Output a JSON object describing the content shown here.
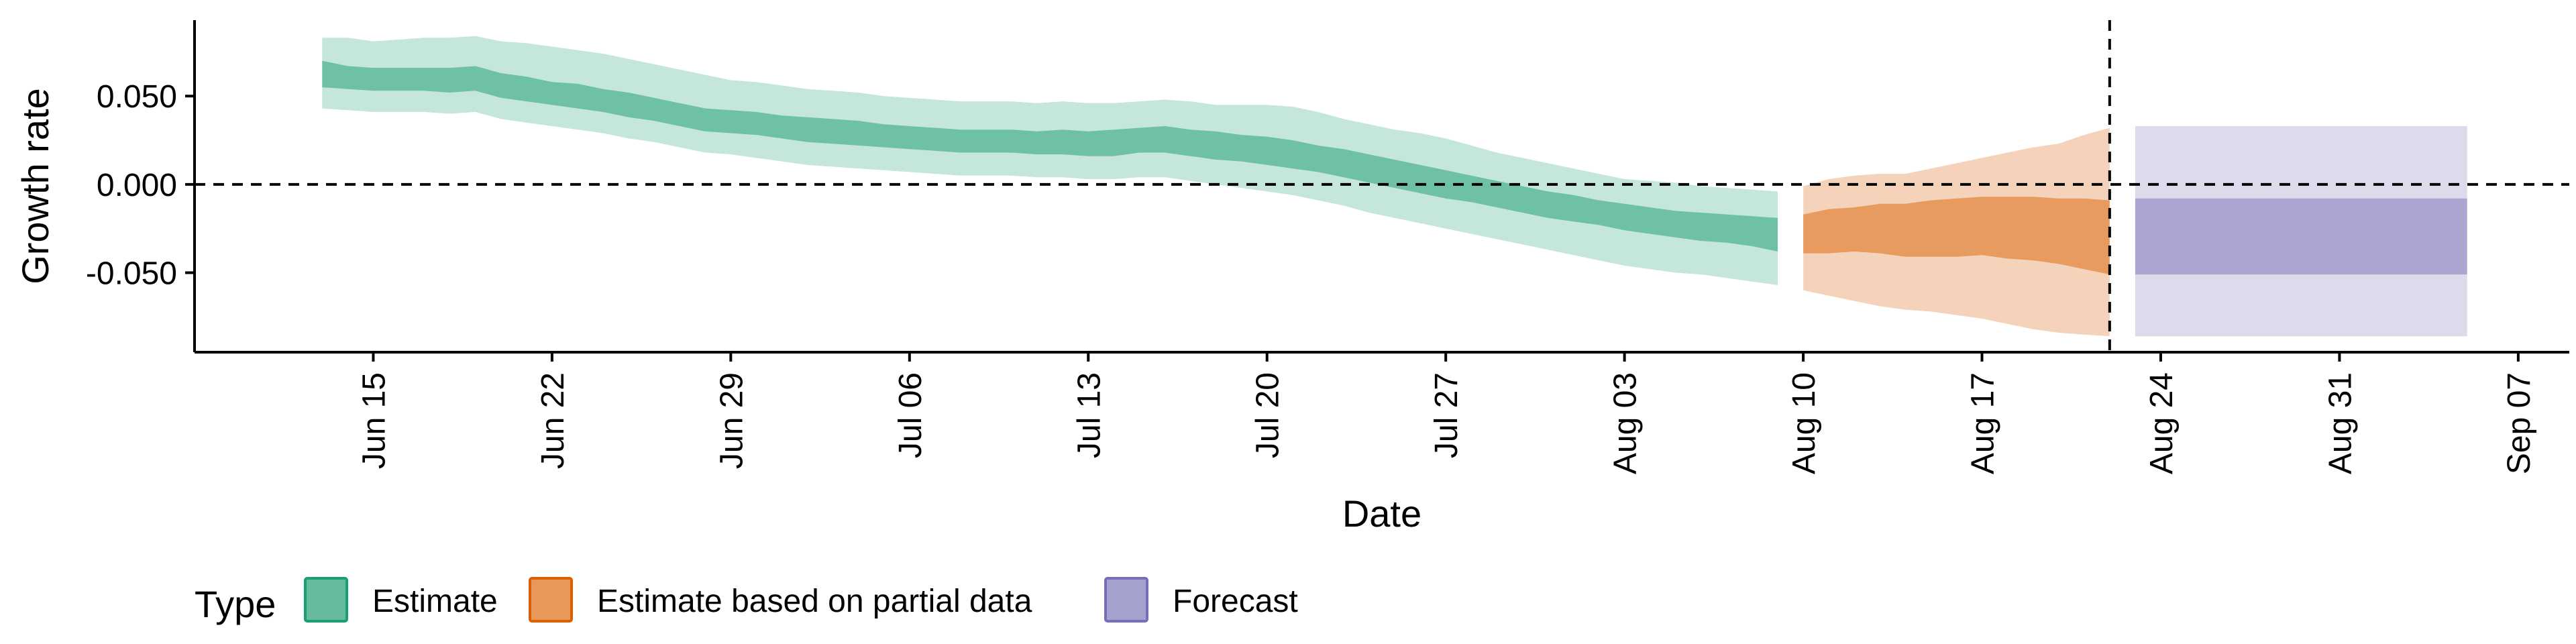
{
  "chart_data": {
    "type": "area",
    "xlabel": "Date",
    "ylabel": "Growth rate",
    "x_range": [
      "2020-06-08",
      "2020-09-09"
    ],
    "ylim": [
      -0.095,
      0.093
    ],
    "y_ticks": [
      -0.05,
      0.0,
      0.05
    ],
    "y_tick_labels": [
      "-0.050",
      "0.000",
      "0.050"
    ],
    "x_ticks": [
      "2020-06-15",
      "2020-06-22",
      "2020-06-29",
      "2020-07-06",
      "2020-07-13",
      "2020-07-20",
      "2020-07-27",
      "2020-08-03",
      "2020-08-10",
      "2020-08-17",
      "2020-08-24",
      "2020-08-31",
      "2020-09-07"
    ],
    "x_tick_labels": [
      "Jun 15",
      "Jun 22",
      "Jun 29",
      "Jul 06",
      "Jul 13",
      "Jul 20",
      "Jul 27",
      "Aug 03",
      "Aug 10",
      "Aug 17",
      "Aug 24",
      "Aug 31",
      "Sep 07"
    ],
    "reference_lines": {
      "horizontal_y": 0.0,
      "vertical_date": "2020-08-22"
    },
    "grid": false,
    "legend": {
      "title": "Type",
      "placement": "bottom-left",
      "entries": [
        {
          "label": "Estimate",
          "fill": "#66bb9e",
          "stroke": "#1b9e77"
        },
        {
          "label": "Estimate based on partial data",
          "fill": "#e8995a",
          "stroke": "#d95f02"
        },
        {
          "label": "Forecast",
          "fill": "#a6a2cf",
          "stroke": "#7570b3"
        }
      ]
    },
    "series": [
      {
        "name": "Estimate",
        "color_inner": "#6fc1a5",
        "color_outer": "#c5e6db",
        "x": [
          "2020-06-13",
          "2020-06-14",
          "2020-06-15",
          "2020-06-16",
          "2020-06-17",
          "2020-06-18",
          "2020-06-19",
          "2020-06-20",
          "2020-06-21",
          "2020-06-22",
          "2020-06-23",
          "2020-06-24",
          "2020-06-25",
          "2020-06-26",
          "2020-06-27",
          "2020-06-28",
          "2020-06-29",
          "2020-06-30",
          "2020-07-01",
          "2020-07-02",
          "2020-07-03",
          "2020-07-04",
          "2020-07-05",
          "2020-07-06",
          "2020-07-07",
          "2020-07-08",
          "2020-07-09",
          "2020-07-10",
          "2020-07-11",
          "2020-07-12",
          "2020-07-13",
          "2020-07-14",
          "2020-07-15",
          "2020-07-16",
          "2020-07-17",
          "2020-07-18",
          "2020-07-19",
          "2020-07-20",
          "2020-07-21",
          "2020-07-22",
          "2020-07-23",
          "2020-07-24",
          "2020-07-25",
          "2020-07-26",
          "2020-07-27",
          "2020-07-28",
          "2020-07-29",
          "2020-07-30",
          "2020-07-31",
          "2020-08-01",
          "2020-08-02",
          "2020-08-03",
          "2020-08-04",
          "2020-08-05",
          "2020-08-06",
          "2020-08-07",
          "2020-08-08",
          "2020-08-09"
        ],
        "upper90": [
          0.083,
          0.083,
          0.081,
          0.082,
          0.083,
          0.083,
          0.084,
          0.081,
          0.08,
          0.078,
          0.076,
          0.074,
          0.071,
          0.068,
          0.065,
          0.062,
          0.059,
          0.058,
          0.056,
          0.054,
          0.053,
          0.052,
          0.05,
          0.049,
          0.048,
          0.047,
          0.047,
          0.047,
          0.046,
          0.047,
          0.046,
          0.046,
          0.047,
          0.048,
          0.047,
          0.045,
          0.045,
          0.045,
          0.044,
          0.041,
          0.037,
          0.034,
          0.031,
          0.029,
          0.026,
          0.022,
          0.018,
          0.015,
          0.012,
          0.009,
          0.006,
          0.003,
          0.002,
          0.001,
          -0.001,
          -0.002,
          -0.003,
          -0.004
        ],
        "upper50": [
          0.07,
          0.067,
          0.066,
          0.066,
          0.066,
          0.066,
          0.067,
          0.063,
          0.061,
          0.058,
          0.057,
          0.054,
          0.052,
          0.049,
          0.046,
          0.043,
          0.042,
          0.041,
          0.039,
          0.038,
          0.037,
          0.036,
          0.034,
          0.033,
          0.032,
          0.031,
          0.031,
          0.031,
          0.03,
          0.031,
          0.03,
          0.031,
          0.032,
          0.033,
          0.031,
          0.03,
          0.028,
          0.027,
          0.025,
          0.022,
          0.02,
          0.017,
          0.014,
          0.011,
          0.008,
          0.005,
          0.002,
          -0.001,
          -0.004,
          -0.006,
          -0.009,
          -0.011,
          -0.013,
          -0.015,
          -0.016,
          -0.017,
          -0.018,
          -0.019
        ],
        "lower50": [
          0.055,
          0.054,
          0.053,
          0.053,
          0.053,
          0.052,
          0.053,
          0.049,
          0.047,
          0.045,
          0.043,
          0.041,
          0.038,
          0.036,
          0.033,
          0.03,
          0.029,
          0.028,
          0.026,
          0.024,
          0.023,
          0.022,
          0.021,
          0.02,
          0.019,
          0.018,
          0.018,
          0.018,
          0.017,
          0.017,
          0.016,
          0.016,
          0.018,
          0.018,
          0.016,
          0.014,
          0.013,
          0.011,
          0.009,
          0.007,
          0.004,
          0.001,
          -0.002,
          -0.005,
          -0.008,
          -0.01,
          -0.013,
          -0.016,
          -0.019,
          -0.021,
          -0.023,
          -0.026,
          -0.028,
          -0.03,
          -0.032,
          -0.033,
          -0.035,
          -0.038
        ],
        "lower90": [
          0.043,
          0.042,
          0.041,
          0.041,
          0.041,
          0.04,
          0.041,
          0.037,
          0.035,
          0.033,
          0.031,
          0.029,
          0.026,
          0.024,
          0.021,
          0.018,
          0.017,
          0.015,
          0.013,
          0.011,
          0.01,
          0.009,
          0.008,
          0.007,
          0.006,
          0.005,
          0.005,
          0.005,
          0.004,
          0.004,
          0.003,
          0.003,
          0.004,
          0.004,
          0.002,
          0.0,
          -0.002,
          -0.004,
          -0.006,
          -0.009,
          -0.012,
          -0.016,
          -0.019,
          -0.022,
          -0.025,
          -0.028,
          -0.031,
          -0.034,
          -0.037,
          -0.04,
          -0.043,
          -0.046,
          -0.048,
          -0.05,
          -0.051,
          -0.053,
          -0.055,
          -0.057
        ]
      },
      {
        "name": "Estimate based on partial data",
        "color_inner": "#e89b5e",
        "color_outer": "#f5d3bb",
        "x": [
          "2020-08-10",
          "2020-08-11",
          "2020-08-12",
          "2020-08-13",
          "2020-08-14",
          "2020-08-15",
          "2020-08-16",
          "2020-08-17",
          "2020-08-18",
          "2020-08-19",
          "2020-08-20",
          "2020-08-21",
          "2020-08-22"
        ],
        "upper90": [
          -0.001,
          0.003,
          0.005,
          0.006,
          0.006,
          0.009,
          0.012,
          0.015,
          0.018,
          0.021,
          0.023,
          0.028,
          0.032
        ],
        "upper50": [
          -0.017,
          -0.014,
          -0.013,
          -0.011,
          -0.011,
          -0.009,
          -0.008,
          -0.007,
          -0.007,
          -0.007,
          -0.008,
          -0.008,
          -0.009
        ],
        "lower50": [
          -0.039,
          -0.039,
          -0.038,
          -0.039,
          -0.041,
          -0.041,
          -0.041,
          -0.04,
          -0.042,
          -0.043,
          -0.045,
          -0.048,
          -0.051
        ],
        "lower90": [
          -0.06,
          -0.063,
          -0.066,
          -0.069,
          -0.071,
          -0.072,
          -0.074,
          -0.076,
          -0.079,
          -0.082,
          -0.084,
          -0.085,
          -0.086
        ]
      },
      {
        "name": "Forecast",
        "color_inner": "#aaa6d1",
        "color_outer": "#dcdaeb",
        "x": [
          "2020-08-23",
          "2020-09-05"
        ],
        "upper90": [
          0.033,
          0.033
        ],
        "upper50": [
          -0.008,
          -0.008
        ],
        "lower50": [
          -0.051,
          -0.051
        ],
        "lower90": [
          -0.086,
          -0.086
        ]
      }
    ]
  }
}
